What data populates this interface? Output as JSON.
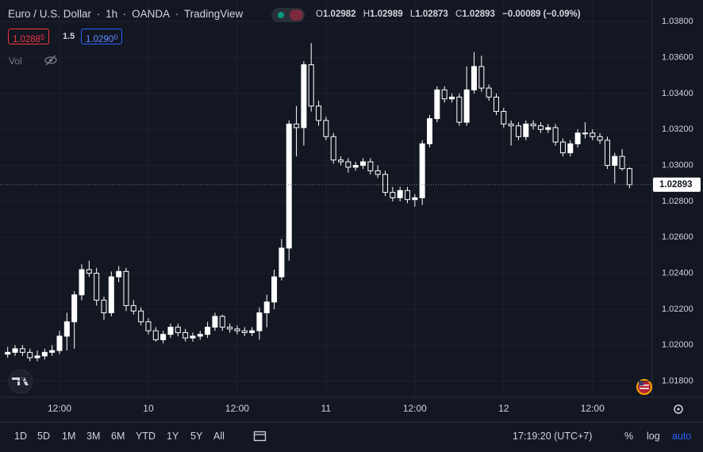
{
  "ui": {
    "symbol": "Euro / U.S. Dollar",
    "interval": "1h",
    "source": "OANDA",
    "platform": "TradingView",
    "ohlc_keys": [
      "O",
      "H",
      "L",
      "C"
    ],
    "change": "−0.00089 (−0.09%)",
    "bid": {
      "main": "1.0288",
      "pip": "5"
    },
    "spread": "1.5",
    "ask": {
      "main": "1.0290",
      "pip": "0"
    },
    "volume_label": "Vol",
    "ranges": [
      "1D",
      "5D",
      "1M",
      "3M",
      "6M",
      "YTD",
      "1Y",
      "5Y",
      "All"
    ],
    "clock": "17:19:20 (UTC+7)",
    "scale_buttons": [
      "%",
      "log",
      "auto"
    ]
  },
  "chart_data": {
    "type": "candlestick",
    "categories": [
      null,
      null,
      null,
      null,
      null,
      null,
      null,
      "12:00",
      null,
      null,
      null,
      null,
      null,
      null,
      null,
      null,
      null,
      null,
      null,
      "10",
      null,
      null,
      null,
      null,
      null,
      null,
      null,
      null,
      null,
      null,
      null,
      "12:00",
      null,
      null,
      null,
      null,
      null,
      null,
      null,
      null,
      null,
      null,
      null,
      "11",
      null,
      null,
      null,
      null,
      null,
      null,
      null,
      null,
      null,
      null,
      null,
      "12:00",
      null,
      null,
      null,
      null,
      null,
      null,
      null,
      null,
      null,
      null,
      null,
      "12",
      null,
      null,
      null,
      null,
      null,
      null,
      null,
      null,
      null,
      null,
      null,
      "12:00",
      null,
      null,
      null,
      null,
      null
    ],
    "open": [
      1.0195,
      1.0196,
      1.0198,
      1.0196,
      1.0193,
      1.0194,
      1.0196,
      1.0197,
      1.0205,
      1.0213,
      1.0228,
      1.0242,
      1.024,
      1.0225,
      1.0218,
      1.0238,
      1.0241,
      1.0222,
      1.0219,
      1.0213,
      1.0208,
      1.0203,
      1.0206,
      1.021,
      1.0207,
      1.0204,
      1.0205,
      1.0206,
      1.021,
      1.0216,
      1.021,
      1.0209,
      1.0208,
      1.0207,
      1.0208,
      1.0218,
      1.0224,
      1.0238,
      1.0254,
      1.0323,
      1.0321,
      1.0356,
      1.0333,
      1.0325,
      1.0316,
      1.0303,
      1.0302,
      1.0299,
      1.03,
      1.0302,
      1.0297,
      1.0295,
      1.0285,
      1.0282,
      1.0286,
      1.0281,
      1.0282,
      1.0312,
      1.0326,
      1.0342,
      1.0337,
      1.0338,
      1.0324,
      1.0342,
      1.0355,
      1.0343,
      1.0338,
      1.033,
      1.0323,
      1.0322,
      1.0316,
      1.0323,
      1.0322,
      1.032,
      1.0321,
      1.0313,
      1.0307,
      1.0312,
      1.0318,
      1.0318,
      1.0316,
      1.0314,
      1.03,
      1.0305,
      1.02982
    ],
    "high": [
      1.0199,
      1.02,
      1.02,
      1.0198,
      1.0197,
      1.0198,
      1.02,
      1.0208,
      1.0218,
      1.023,
      1.0245,
      1.0247,
      1.0243,
      1.0227,
      1.0241,
      1.0244,
      1.0243,
      1.0225,
      1.0221,
      1.0215,
      1.021,
      1.0208,
      1.0212,
      1.0212,
      1.0209,
      1.0207,
      1.0208,
      1.0213,
      1.0218,
      1.0217,
      1.0212,
      1.0211,
      1.021,
      1.021,
      1.0221,
      1.0228,
      1.0242,
      1.0259,
      1.0325,
      1.0333,
      1.0358,
      1.0368,
      1.0336,
      1.0327,
      1.0318,
      1.0305,
      1.0304,
      1.0302,
      1.0304,
      1.0304,
      1.03,
      1.0297,
      1.0288,
      1.0288,
      1.0288,
      1.0284,
      1.0314,
      1.0328,
      1.0344,
      1.0344,
      1.034,
      1.034,
      1.0355,
      1.0363,
      1.0361,
      1.0345,
      1.034,
      1.0332,
      1.0325,
      1.0324,
      1.0325,
      1.0325,
      1.0324,
      1.0323,
      1.0323,
      1.0315,
      1.0314,
      1.032,
      1.0324,
      1.032,
      1.0318,
      1.0316,
      1.0307,
      1.0309,
      1.02989
    ],
    "low": [
      1.0193,
      1.0194,
      1.0194,
      1.0191,
      1.0191,
      1.0192,
      1.0194,
      1.0195,
      1.0197,
      1.0198,
      1.0225,
      1.0238,
      1.0222,
      1.0214,
      1.0216,
      1.0235,
      1.0219,
      1.0217,
      1.0211,
      1.0206,
      1.0202,
      1.0201,
      1.0204,
      1.0205,
      1.0202,
      1.0202,
      1.0203,
      1.0204,
      1.0208,
      1.0208,
      1.0207,
      1.0206,
      1.0205,
      1.0205,
      1.0203,
      1.021,
      1.022,
      1.0236,
      1.0247,
      1.0305,
      1.0311,
      1.033,
      1.0322,
      1.0314,
      1.0301,
      1.03,
      1.0296,
      1.0297,
      1.0298,
      1.0295,
      1.0293,
      1.0283,
      1.028,
      1.028,
      1.0279,
      1.0277,
      1.0278,
      1.031,
      1.0324,
      1.0335,
      1.0335,
      1.0322,
      1.0322,
      1.034,
      1.0341,
      1.0336,
      1.0328,
      1.0321,
      1.0311,
      1.0314,
      1.0314,
      1.032,
      1.0318,
      1.0318,
      1.0311,
      1.0305,
      1.0305,
      1.031,
      1.0315,
      1.0314,
      1.0312,
      1.0298,
      1.029,
      1.0297,
      1.02873
    ],
    "close": [
      1.0196,
      1.0198,
      1.0196,
      1.0193,
      1.0194,
      1.0196,
      1.0197,
      1.0205,
      1.0213,
      1.0228,
      1.0242,
      1.024,
      1.0225,
      1.0218,
      1.0238,
      1.0241,
      1.0222,
      1.0219,
      1.0213,
      1.0208,
      1.0203,
      1.0206,
      1.021,
      1.0207,
      1.0204,
      1.0205,
      1.0206,
      1.021,
      1.0216,
      1.021,
      1.0209,
      1.0208,
      1.0207,
      1.0208,
      1.0218,
      1.0224,
      1.0238,
      1.0254,
      1.0323,
      1.0321,
      1.0356,
      1.0333,
      1.0325,
      1.0316,
      1.0303,
      1.0302,
      1.0299,
      1.03,
      1.0302,
      1.0297,
      1.0295,
      1.0285,
      1.0282,
      1.0286,
      1.0281,
      1.0282,
      1.0312,
      1.0326,
      1.0342,
      1.0337,
      1.0338,
      1.0324,
      1.0342,
      1.0355,
      1.0343,
      1.0338,
      1.033,
      1.0323,
      1.0322,
      1.0316,
      1.0323,
      1.0322,
      1.032,
      1.0321,
      1.0313,
      1.0307,
      1.0312,
      1.0318,
      1.0318,
      1.0316,
      1.0314,
      1.03,
      1.0305,
      1.02982,
      1.02893
    ],
    "up_color": "#ffffff",
    "down_color": "#131722",
    "wick_color": "#ffffff",
    "ylim": [
      1.0171,
      1.0392
    ],
    "yticks": [
      {
        "value": 1.018,
        "label": "1.01800"
      },
      {
        "value": 1.02,
        "label": "1.02000"
      },
      {
        "value": 1.022,
        "label": "1.02200"
      },
      {
        "value": 1.024,
        "label": "1.02400"
      },
      {
        "value": 1.026,
        "label": "1.02600"
      },
      {
        "value": 1.028,
        "label": "1.02800"
      },
      {
        "value": 1.03,
        "label": "1.03000"
      },
      {
        "value": 1.032,
        "label": "1.03200"
      },
      {
        "value": 1.034,
        "label": "1.03400"
      },
      {
        "value": 1.036,
        "label": "1.03600"
      },
      {
        "value": 1.038,
        "label": "1.03800"
      }
    ],
    "grid": true
  }
}
